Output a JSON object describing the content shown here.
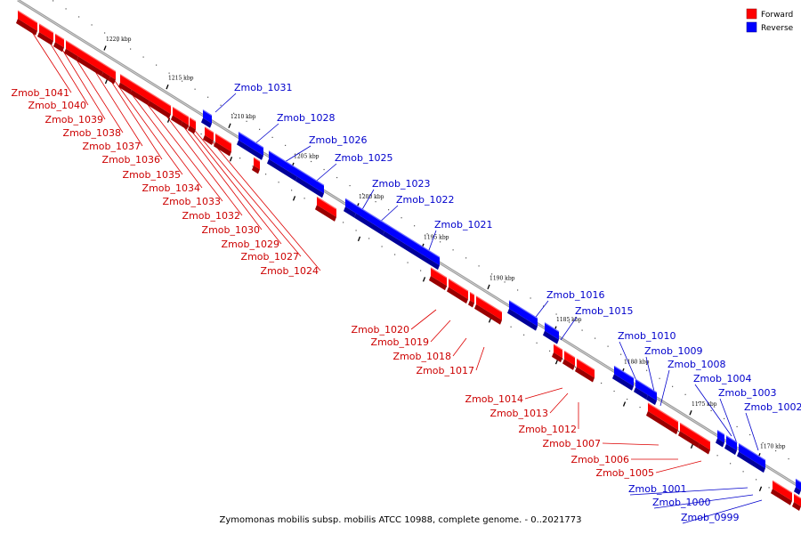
{
  "caption": "Zymomonas mobilis subsp. mobilis ATCC 10988, complete genome. - 0..2021773",
  "legend": [
    {
      "label": "Forward",
      "color": "#ff0000"
    },
    {
      "label": "Reverse",
      "color": "#0000ff"
    }
  ],
  "colors": {
    "forward": "#ff0000",
    "reverse": "#0000ff",
    "forward_line": "#dd0000",
    "reverse_line": "#0000cc",
    "axis": "#9a9a9a"
  },
  "kbp_labels": [
    "1220 kbp",
    "1215 kbp",
    "1210 kbp",
    "1205 kbp",
    "1200 kbp",
    "1195 kbp",
    "1190 kbp",
    "1185 kbp",
    "1180 kbp",
    "1175 kbp",
    "1170 kbp"
  ],
  "forward_genes": [
    "Zmob_1041",
    "Zmob_1040",
    "Zmob_1039",
    "Zmob_1038",
    "Zmob_1037",
    "Zmob_1036",
    "Zmob_1035",
    "Zmob_1034",
    "Zmob_1033",
    "Zmob_1032",
    "Zmob_1030",
    "Zmob_1029",
    "Zmob_1027",
    "Zmob_1024",
    "Zmob_1020",
    "Zmob_1019",
    "Zmob_1018",
    "Zmob_1017",
    "Zmob_1014",
    "Zmob_1013",
    "Zmob_1012",
    "Zmob_1007",
    "Zmob_1006",
    "Zmob_1005"
  ],
  "reverse_genes": [
    "Zmob_1031",
    "Zmob_1028",
    "Zmob_1026",
    "Zmob_1025",
    "Zmob_1023",
    "Zmob_1022",
    "Zmob_1021",
    "Zmob_1016",
    "Zmob_1015",
    "Zmob_1010",
    "Zmob_1009",
    "Zmob_1008",
    "Zmob_1004",
    "Zmob_1003",
    "Zmob_1002",
    "Zmob_1001",
    "Zmob_1000",
    "Zmob_0999"
  ]
}
